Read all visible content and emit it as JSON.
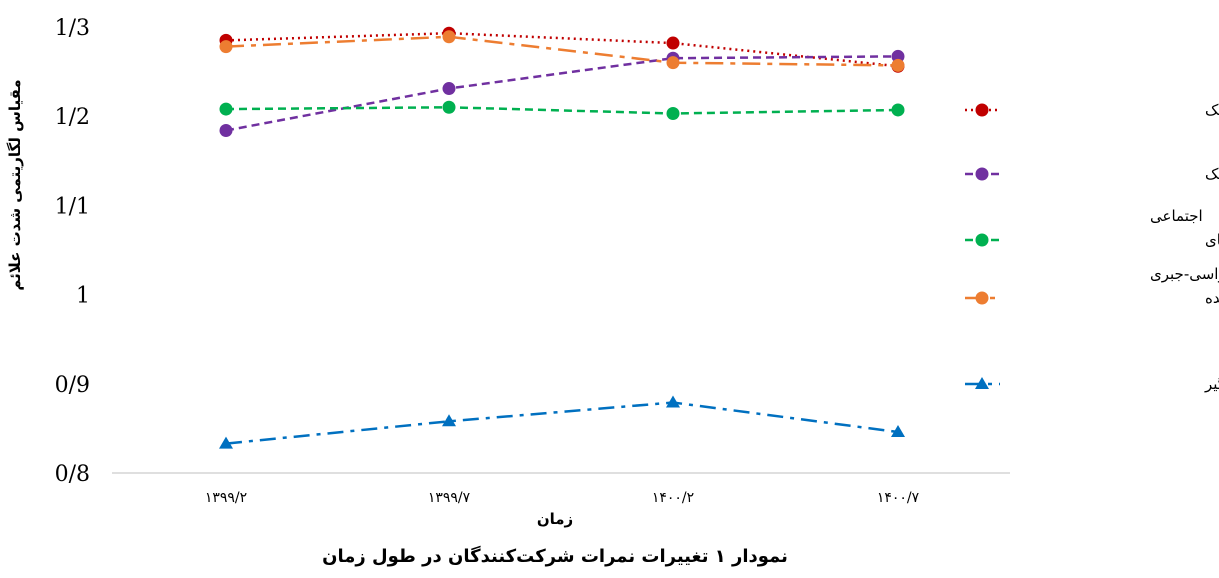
{
  "chart_data": {
    "type": "line",
    "caption": "نمودار ۱ تغییرات نمرات شرکت‌کنندگان در طول زمان",
    "xlabel": "زمان",
    "ylabel": "مقیاس لگاریتمی شدت علائم",
    "categories": [
      "۱۳۹۹/۲",
      "۱۳۹۹/۷",
      "۱۴۰۰/۲",
      "۱۴۰۰/۷"
    ],
    "y_ticks": [
      0.8,
      0.9,
      1,
      1.1,
      1.2,
      1.3
    ],
    "y_tick_labels": [
      "0/8",
      "0/9",
      "1",
      "1/1",
      "1/2",
      "1/3"
    ],
    "ylim": [
      0.8,
      1.3
    ],
    "grid": false,
    "legend_position": "right",
    "series": [
      {
        "name": "مقیاس اضطراب بک",
        "values": [
          1.285,
          1.293,
          1.282,
          1.256
        ],
        "color": "#c00000",
        "dash": "dotted",
        "marker": "circle"
      },
      {
        "name": "مقیاس افسردگی بک",
        "values": [
          1.184,
          1.231,
          1.265,
          1.267
        ],
        "color": "#7030a0",
        "dash": "dashed",
        "marker": "circle"
      },
      {
        "name": "پرسشنامه فوبیای اجتماعی",
        "values": [
          1.208,
          1.21,
          1.203,
          1.207
        ],
        "color": "#00b050",
        "dash": "dashed",
        "marker": "circle"
      },
      {
        "name": "پرسشنامه‌ی تجدیدنظر شده وسواسی-جبری",
        "values": [
          1.278,
          1.289,
          1.26,
          1.257
        ],
        "color": "#ed7d31",
        "dash": "longdash",
        "marker": "circle"
      },
      {
        "name": "اختلال اضطراب فراگیر",
        "values": [
          0.833,
          0.858,
          0.879,
          0.846
        ],
        "color": "#0070c0",
        "dash": "dashdot",
        "marker": "triangle"
      }
    ]
  }
}
